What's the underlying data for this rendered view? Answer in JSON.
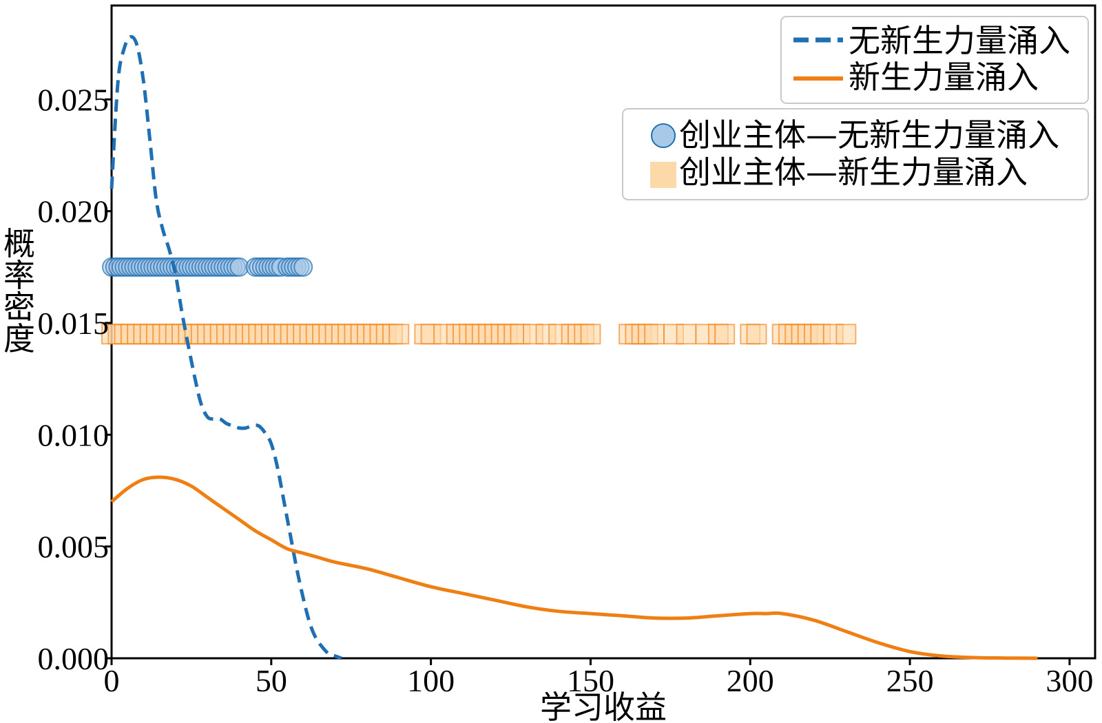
{
  "chart_data": {
    "type": "line",
    "title": "",
    "xlabel": "学习收益",
    "ylabel": "概率密度",
    "xlim": [
      0,
      308
    ],
    "ylim": [
      0,
      0.0292
    ],
    "x_ticks": [
      0,
      50,
      100,
      150,
      200,
      250,
      300
    ],
    "x_tick_labels": [
      "0",
      "50",
      "100",
      "150",
      "200",
      "250",
      "300"
    ],
    "y_ticks": [
      0,
      0.005,
      0.01,
      0.015,
      0.02,
      0.025
    ],
    "y_tick_labels": [
      "0.000",
      "0.005",
      "0.010",
      "0.015",
      "0.020",
      "0.025"
    ],
    "grid": false,
    "series": [
      {
        "name": "无新生力量涌入",
        "kind": "kde",
        "style": "dashed",
        "color": "#1f6fb2",
        "x": [
          0,
          2,
          4,
          6,
          8,
          10,
          12,
          14,
          16,
          18,
          20,
          22,
          24,
          26,
          28,
          30,
          32,
          34,
          36,
          38,
          40,
          42,
          44,
          46,
          48,
          50,
          52,
          54,
          56,
          58,
          60,
          62,
          64,
          66,
          68,
          70,
          72
        ],
        "y": [
          0.021,
          0.0258,
          0.0273,
          0.0278,
          0.0274,
          0.0258,
          0.0232,
          0.0205,
          0.0192,
          0.0183,
          0.0172,
          0.0155,
          0.014,
          0.0126,
          0.0114,
          0.0108,
          0.0107,
          0.0107,
          0.0105,
          0.0104,
          0.0103,
          0.0103,
          0.0104,
          0.0104,
          0.0101,
          0.0096,
          0.0085,
          0.007,
          0.0055,
          0.004,
          0.0027,
          0.0016,
          0.0009,
          0.0005,
          0.0002,
          0.0001,
          0.0
        ]
      },
      {
        "name": "新生力量涌入",
        "kind": "kde",
        "style": "solid",
        "color": "#f07f13",
        "x": [
          0,
          5,
          10,
          15,
          20,
          25,
          30,
          35,
          40,
          45,
          50,
          55,
          60,
          65,
          70,
          80,
          90,
          100,
          110,
          120,
          130,
          140,
          150,
          160,
          170,
          180,
          190,
          200,
          205,
          210,
          220,
          230,
          240,
          250,
          260,
          270,
          280,
          290
        ],
        "y": [
          0.007,
          0.0076,
          0.008,
          0.0081,
          0.008,
          0.0077,
          0.0072,
          0.0067,
          0.0062,
          0.0057,
          0.0053,
          0.0049,
          0.0047,
          0.0045,
          0.0043,
          0.004,
          0.0036,
          0.0032,
          0.0029,
          0.0026,
          0.0023,
          0.0021,
          0.002,
          0.0019,
          0.0018,
          0.0018,
          0.0019,
          0.002,
          0.002,
          0.002,
          0.0017,
          0.0012,
          0.0007,
          0.0003,
          0.0001,
          3e-05,
          1e-05,
          0.0
        ]
      }
    ],
    "rug_series": [
      {
        "name": "创业主体—无新生力量涌入",
        "marker": "circle",
        "color": "#1f6fb2",
        "fill": "#a9c9e8",
        "y": 0.0175,
        "x": [
          0,
          1,
          2,
          3,
          4,
          5,
          6,
          7,
          8,
          9,
          10,
          11,
          12,
          13,
          14,
          15,
          16,
          17,
          18,
          19,
          20,
          21,
          22,
          23,
          24,
          25,
          26,
          27,
          28,
          29,
          30,
          31,
          32,
          33,
          34,
          35,
          36,
          37,
          38,
          39,
          40,
          45,
          46,
          47,
          48,
          49,
          50,
          51,
          52,
          53,
          55,
          56,
          57,
          58,
          59,
          60
        ]
      },
      {
        "name": "创业主体—新生力量涌入",
        "marker": "square",
        "color": "#f07f13",
        "fill": "#fdd9aa",
        "y": 0.0145,
        "x": [
          0,
          2,
          4,
          6,
          8,
          10,
          12,
          14,
          16,
          18,
          20,
          22,
          24,
          26,
          28,
          30,
          32,
          34,
          36,
          38,
          40,
          42,
          44,
          46,
          48,
          50,
          52,
          54,
          56,
          58,
          60,
          62,
          64,
          66,
          68,
          70,
          72,
          74,
          76,
          78,
          80,
          82,
          84,
          86,
          88,
          90,
          98,
          100,
          104,
          108,
          110,
          112,
          114,
          116,
          118,
          120,
          122,
          124,
          126,
          128,
          132,
          136,
          140,
          144,
          146,
          148,
          150,
          162,
          164,
          166,
          168,
          170,
          176,
          180,
          186,
          190,
          192,
          200,
          202,
          210,
          212,
          214,
          216,
          218,
          220,
          222,
          226,
          230
        ]
      }
    ],
    "legend": {
      "lines_position": "top-right",
      "markers_position": "upper-right"
    }
  }
}
